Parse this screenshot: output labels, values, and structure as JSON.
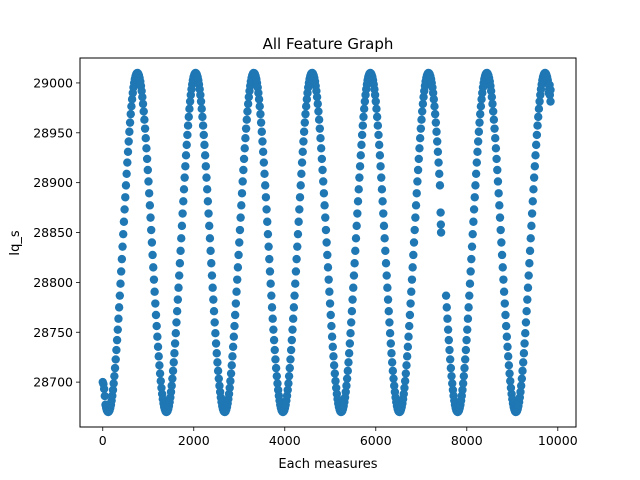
{
  "chart_data": {
    "type": "scatter",
    "title": "All Feature Graph",
    "xlabel": "Each measures",
    "ylabel": "Iq_s",
    "xlim": [
      -500,
      10400
    ],
    "ylim": [
      28655,
      29025
    ],
    "xticks": [
      "0",
      "2000",
      "4000",
      "6000",
      "8000",
      "10000"
    ],
    "xtick_values": [
      0,
      2000,
      4000,
      6000,
      8000,
      10000
    ],
    "yticks": [
      "28700",
      "28750",
      "28800",
      "28850",
      "28900",
      "28950",
      "29000"
    ],
    "ytick_values": [
      28700,
      28750,
      28800,
      28850,
      28900,
      28950,
      29000
    ],
    "grid": false,
    "legend": "none",
    "marker_color": "#1f77b4",
    "series": [
      {
        "x_range": [
          0,
          9850
        ],
        "x_step": 15,
        "wave": {
          "center": 28840,
          "amplitude": 170,
          "period": 1280,
          "peak_at_x": 760,
          "start_y": 28700
        },
        "extra_points": [
          {
            "x": 7425,
            "y": 28870
          },
          {
            "x": 7430,
            "y": 28858
          },
          {
            "x": 7435,
            "y": 28850
          },
          {
            "x": 9800,
            "y": 28990
          },
          {
            "x": 9820,
            "y": 28998
          },
          {
            "x": 9840,
            "y": 28993
          }
        ]
      }
    ]
  }
}
